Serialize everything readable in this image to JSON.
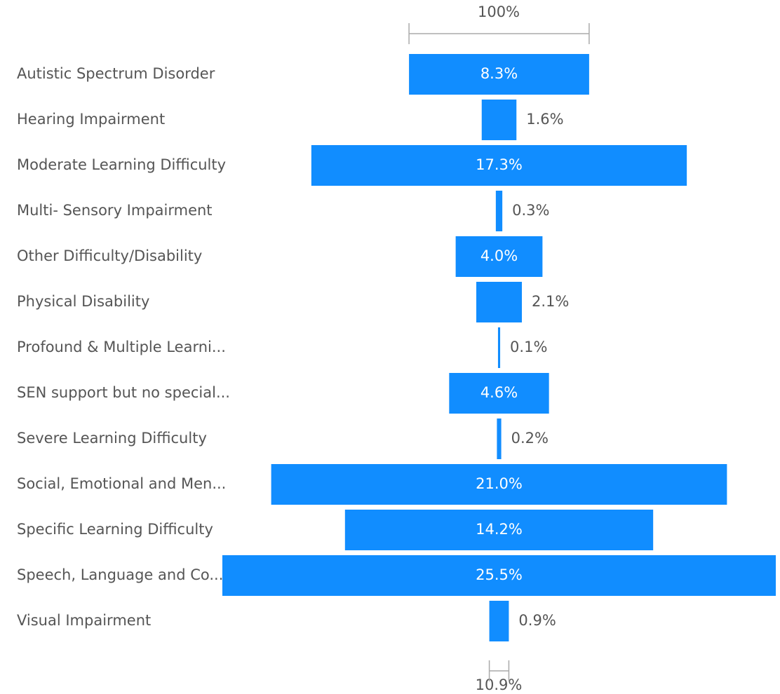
{
  "chart_data": {
    "type": "funnel",
    "categories": [
      "Autistic Spectrum Disorder",
      "Hearing Impairment",
      "Moderate Learning Difficulty",
      "Multi- Sensory Impairment",
      "Other Difficulty/Disability",
      "Physical Disability",
      "Profound & Multiple Learni...",
      "SEN support but no special...",
      "Severe Learning Difficulty",
      "Social, Emotional and Men...",
      "Specific Learning Difficulty",
      "Speech, Language and Co...",
      "Visual Impairment"
    ],
    "values": [
      8.3,
      1.6,
      17.3,
      0.3,
      4.0,
      2.1,
      0.1,
      4.6,
      0.2,
      21.0,
      14.2,
      25.5,
      0.9
    ],
    "value_labels": [
      "8.3%",
      "1.6%",
      "17.3%",
      "0.3%",
      "4.0%",
      "2.1%",
      "0.1%",
      "4.6%",
      "0.2%",
      "21.0%",
      "14.2%",
      "25.5%",
      "0.9%"
    ],
    "color": "#118dff",
    "top_annotation": "100%",
    "bottom_annotation": "10.9%"
  }
}
